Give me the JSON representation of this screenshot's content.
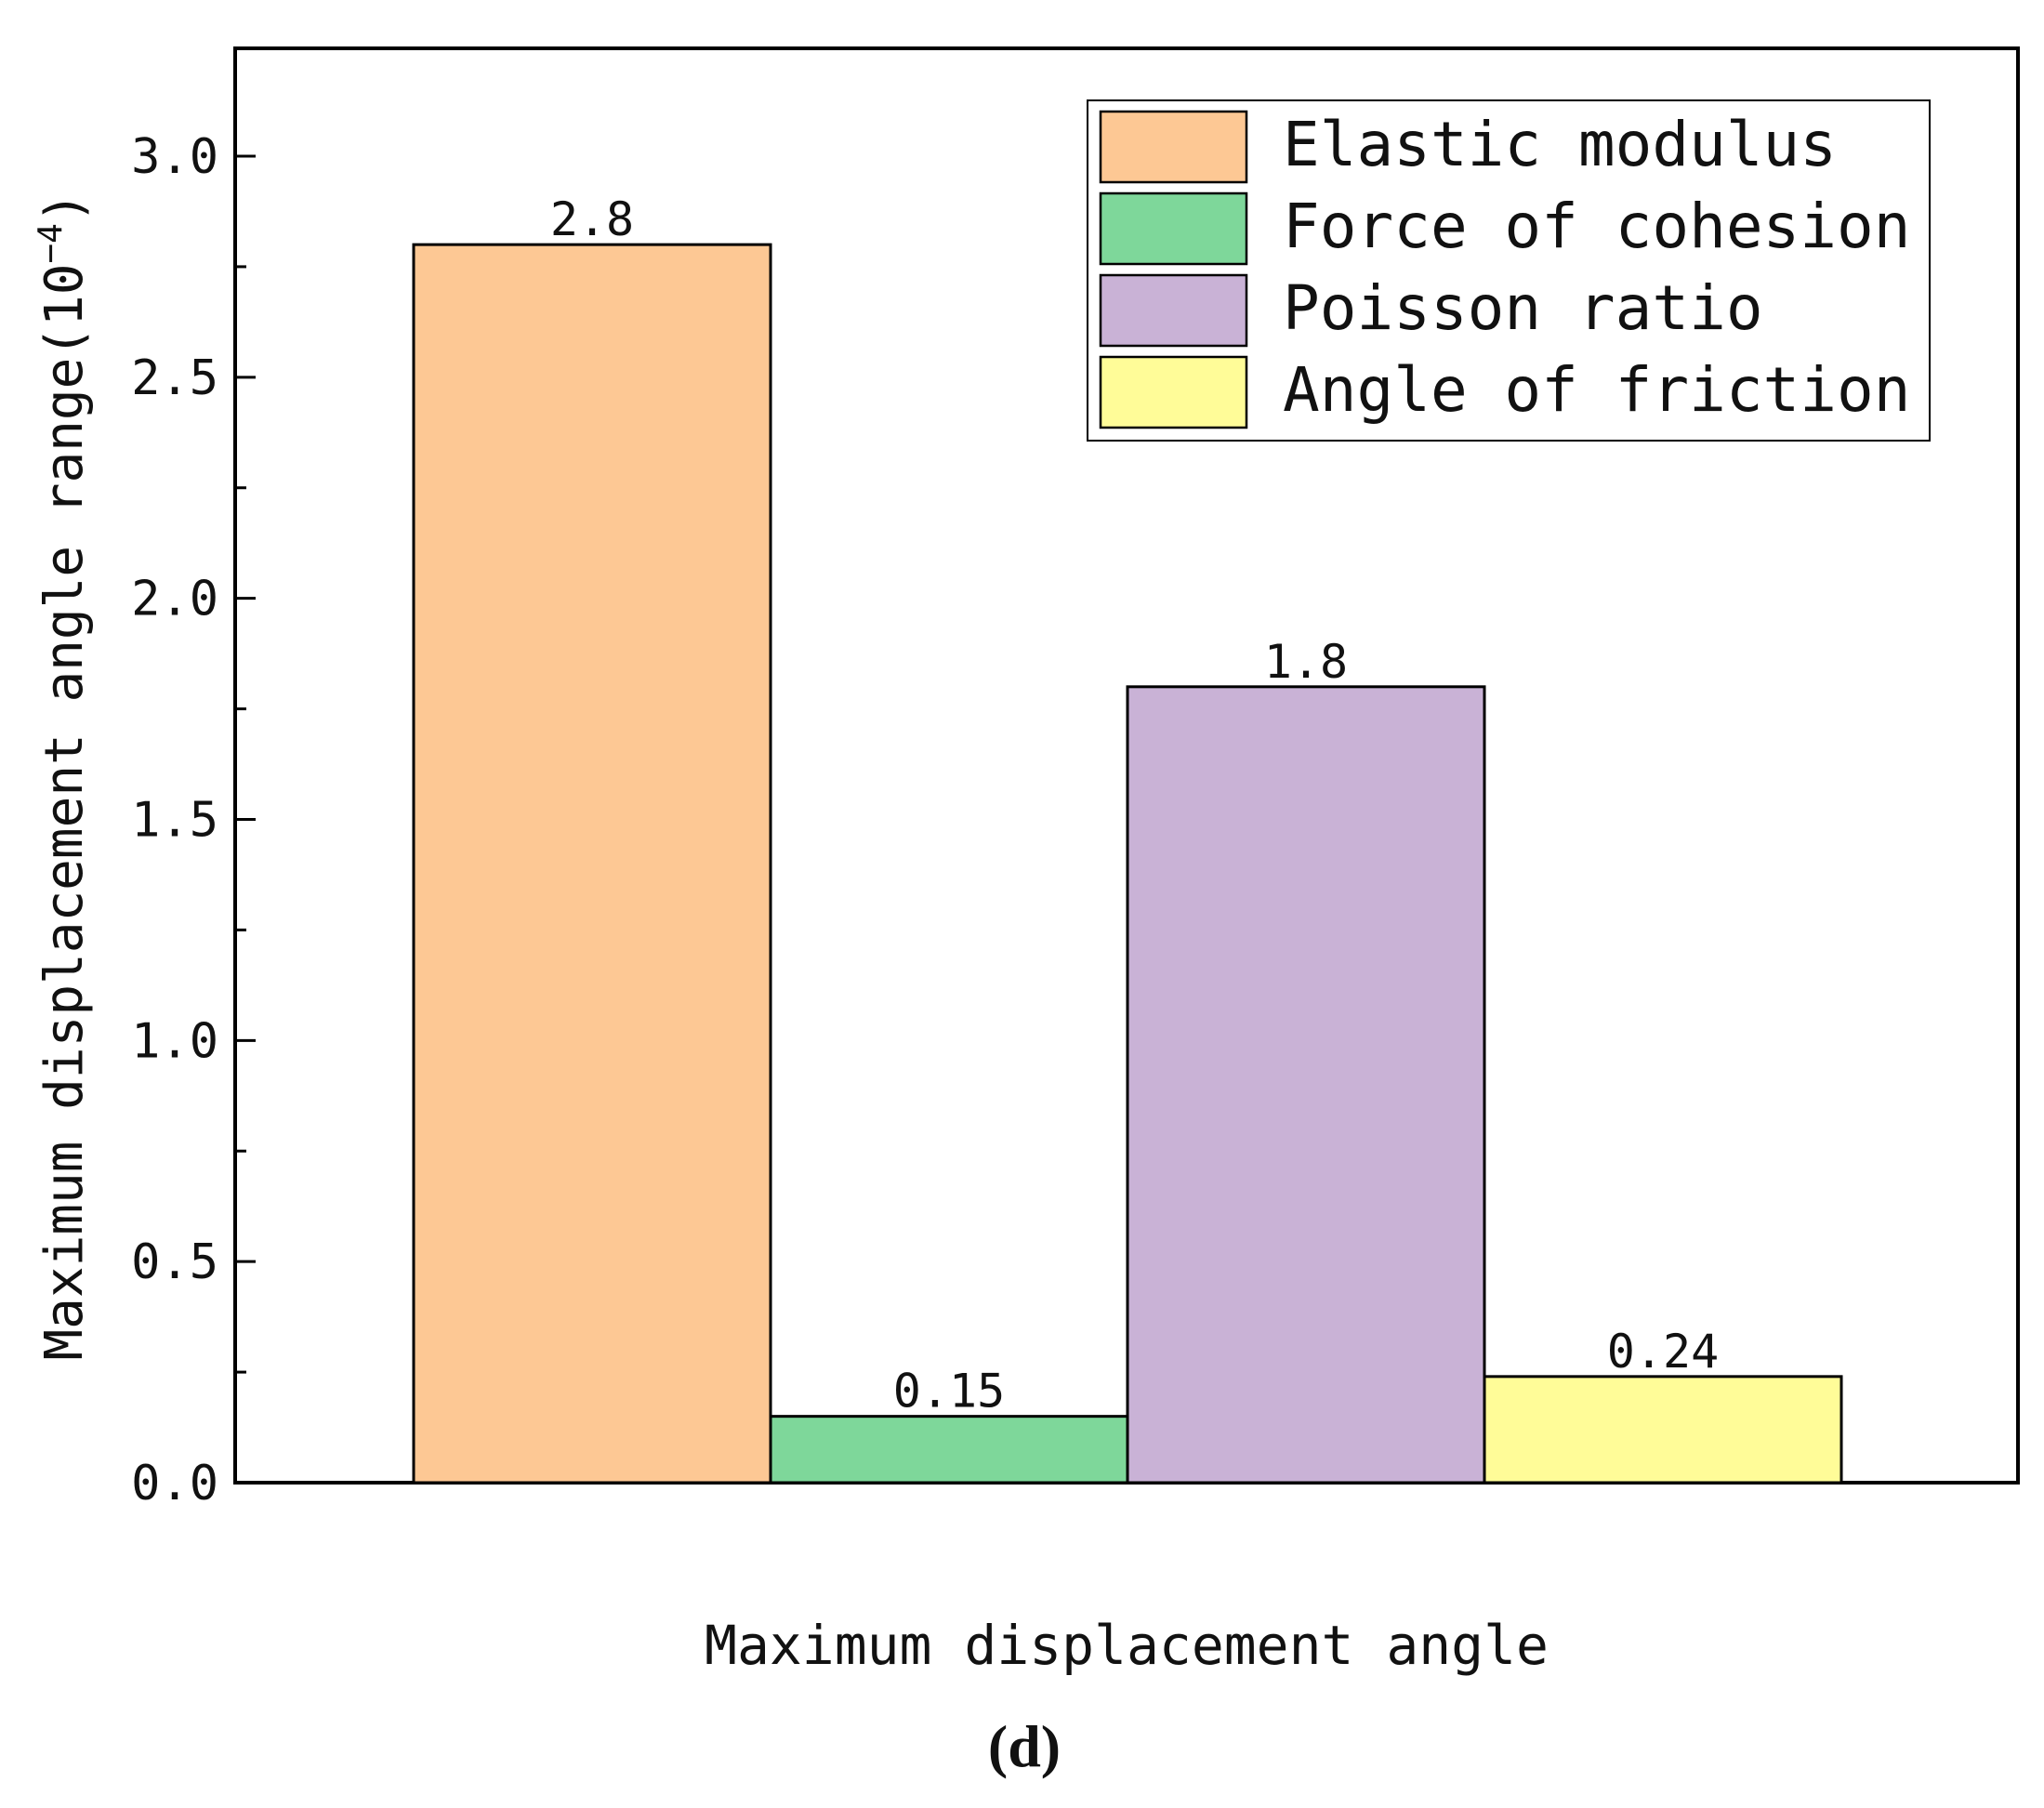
{
  "chart_data": {
    "type": "bar",
    "xlabel": "Maximum displacement angle",
    "ylabel": "Maximum displacement angle range(10",
    "ylabel_exponent": "−4",
    "ylabel_close": ")",
    "ylim": [
      0,
      3.25
    ],
    "yticks": [
      {
        "value": 0.0,
        "label": "0.0"
      },
      {
        "value": 0.5,
        "label": "0.5"
      },
      {
        "value": 1.0,
        "label": "1.0"
      },
      {
        "value": 1.5,
        "label": "1.5"
      },
      {
        "value": 2.0,
        "label": "2.0"
      },
      {
        "value": 2.5,
        "label": "2.5"
      },
      {
        "value": 3.0,
        "label": "3.0"
      }
    ],
    "series": [
      {
        "name": "Elastic modulus",
        "value": 2.8,
        "label": "2.8",
        "color": "#FDC894"
      },
      {
        "name": "Force of cohesion",
        "value": 0.15,
        "label": "0.15",
        "color": "#7ED79A"
      },
      {
        "name": "Poisson ratio",
        "value": 1.8,
        "label": "1.8",
        "color": "#C9B2D6"
      },
      {
        "name": "Angle of friction",
        "value": 0.24,
        "label": "0.24",
        "color": "#FFFC98"
      }
    ],
    "legend_position": "top-right",
    "grid": false
  },
  "panel_label": "(d)"
}
